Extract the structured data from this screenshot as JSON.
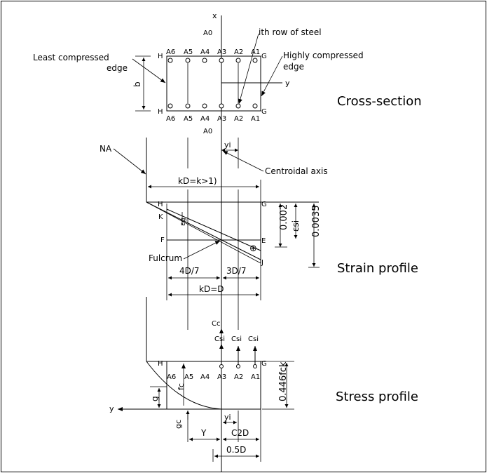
{
  "titles": {
    "cross_section": "Cross-section",
    "strain_profile": "Strain profile",
    "stress_profile": "Stress profile"
  },
  "labels": {
    "x_axis": "x",
    "y_axis": "y",
    "y_axis_stress": "y",
    "a0_top": "A0",
    "a0_bottom": "A0",
    "ith_row": "ith row of steel",
    "least_compressed_1": "Least compressed",
    "least_compressed_2": "edge",
    "highly_compressed_1": "Highly compressed",
    "highly_compressed_2": "edge",
    "b": "b",
    "H": "H",
    "G": "G",
    "yi": "yi",
    "yi_stress": "yi",
    "na": "NA",
    "centroidal": "Centroidal axis",
    "kd_gt1": "kD=k>1)",
    "kd_eq": "kD=D",
    "four_d7": "4D/7",
    "three_d7": "3D/7",
    "fulcrum": "Fulcrum",
    "K": "K",
    "F": "F",
    "E": "E",
    "J": "J",
    "plus": "⊕",
    "e002": "0.002",
    "e0035": "0.0035",
    "esi": "εsi",
    "eg": "εg",
    "cc": "Cc",
    "csi": "Csi",
    "fc": "fc",
    "g": "g",
    "gc": "gc",
    "Y": "Y",
    "c2d": "C2D",
    "half_d": "0.5D",
    "fck": "0.446fck"
  },
  "bars_top": [
    "A6",
    "A5",
    "A4",
    "A3",
    "A2",
    "A1"
  ],
  "bars_bottom": [
    "A6",
    "A5",
    "A4",
    "A3",
    "A2",
    "A1"
  ],
  "bars_stress": [
    "A6",
    "A5",
    "A4",
    "A3",
    "A2",
    "A1"
  ]
}
